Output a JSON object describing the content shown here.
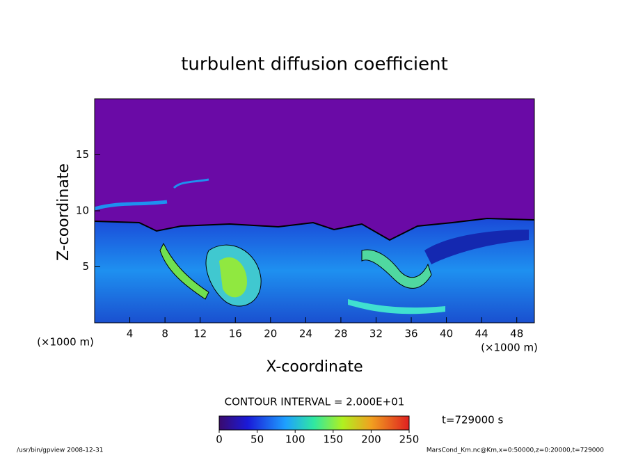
{
  "chart_data": {
    "type": "contour",
    "title": "turbulent diffusion coefficient",
    "xlabel": "X-coordinate",
    "ylabel": "Z-coordinate",
    "x_unit": "(×1000 m)",
    "y_unit": "(×1000 m)",
    "xlim": [
      0,
      50
    ],
    "xticks": [
      4,
      8,
      12,
      16,
      20,
      24,
      28,
      32,
      36,
      40,
      44,
      48
    ],
    "ylim": [
      0,
      20
    ],
    "yticks": [
      5,
      10,
      15
    ],
    "contour_interval": "CONTOUR INTERVAL = 2.000E+01",
    "colorbar": {
      "lim": [
        0,
        250
      ],
      "ticks": [
        0,
        50,
        100,
        150,
        200,
        250
      ]
    },
    "time_label": "t=729000 s",
    "footer_left": "/usr/bin/gpview   2008-12-31",
    "footer_right": "MarsCond_Km.nc@Km,x=0:50000,z=0:20000,t=729000"
  }
}
